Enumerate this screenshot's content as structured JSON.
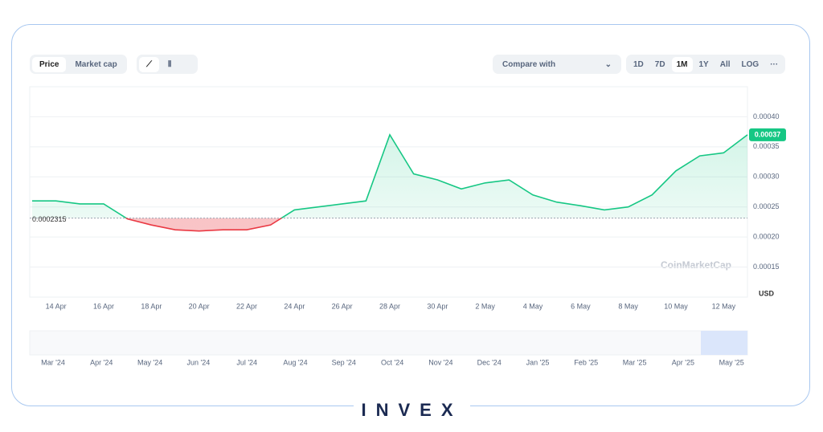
{
  "toolbar": {
    "tabs": [
      "Price",
      "Market cap"
    ],
    "compare": "Compare with",
    "ranges": [
      "1D",
      "7D",
      "1M",
      "1Y",
      "All",
      "LOG",
      "···"
    ]
  },
  "chart_data": {
    "type": "line",
    "categories": [
      null,
      "14 Apr",
      null,
      "16 Apr",
      null,
      "18 Apr",
      null,
      "20 Apr",
      null,
      "22 Apr",
      null,
      "24 Apr",
      null,
      "26 Apr",
      null,
      "28 Apr",
      null,
      "30 Apr",
      null,
      "2 May",
      null,
      "4 May",
      null,
      "6 May",
      null,
      "8 May",
      null,
      "10 May",
      null,
      "12 May",
      null
    ],
    "values": [
      0.00026,
      0.00026,
      0.000255,
      0.000255,
      0.00023,
      0.00022,
      0.000212,
      0.00021,
      0.000212,
      0.000212,
      0.00022,
      0.000245,
      0.00025,
      0.000255,
      0.00026,
      0.00037,
      0.000305,
      0.000295,
      0.00028,
      0.00029,
      0.000295,
      0.00027,
      0.000258,
      0.000252,
      0.000245,
      0.00025,
      0.00027,
      0.00031,
      0.000335,
      0.00034,
      0.00037
    ],
    "color": "#16c784",
    "below_color": "#ea3943",
    "baseline": {
      "value": 0.0002315,
      "label": "0.0002315"
    },
    "current": {
      "value": 0.00037,
      "label": "0.00037"
    },
    "ylim": [
      0.0001,
      0.00045
    ],
    "yticks": [
      0.00015,
      {
        "value": 0.0002,
        "label": "0.00020"
      },
      0.00025,
      {
        "value": 0.0003,
        "label": "0.00030"
      },
      0.00035,
      {
        "value": 0.0004,
        "label": "0.00040"
      }
    ],
    "y_unit": "USD",
    "grid": true
  },
  "watermark": "CoinMarketCap",
  "navigator": {
    "labels": [
      "Mar '24",
      "Apr '24",
      "May '24",
      "Jun '24",
      "Jul '24",
      "Aug '24",
      "Sep '24",
      "Oct '24",
      "Nov '24",
      "Dec '24",
      "Jan '25",
      "Feb '25",
      "Mar '25",
      "Apr '25",
      "May '25"
    ]
  },
  "brand": "INVEX"
}
